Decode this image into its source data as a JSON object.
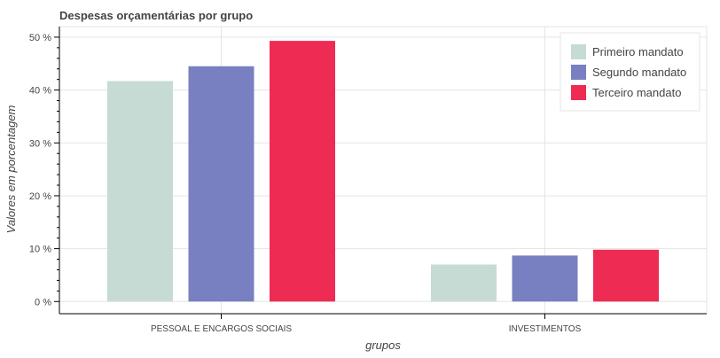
{
  "chart_data": {
    "type": "bar",
    "title": "Despesas orçamentárias por grupo",
    "xlabel": "grupos",
    "ylabel": "Valores em porcentagem",
    "categories": [
      "PESSOAL E ENCARGOS SOCIAIS",
      "INVESTIMENTOS"
    ],
    "series": [
      {
        "name": "Primeiro mandato",
        "values": [
          41.7,
          7.0
        ],
        "color": "#c6dbd3"
      },
      {
        "name": "Segundo mandato",
        "values": [
          44.5,
          8.7
        ],
        "color": "#7880c1"
      },
      {
        "name": "Terceiro mandato",
        "values": [
          49.3,
          9.8
        ],
        "color": "#ee2b53"
      }
    ],
    "ylim": [
      -2.3,
      52
    ],
    "yticks": [
      0,
      10,
      20,
      30,
      40,
      50
    ],
    "ytick_labels": [
      "0 %",
      "10 %",
      "20 %",
      "30 %",
      "40 %",
      "50 %"
    ],
    "grid": true,
    "legend_position": "top-right"
  }
}
